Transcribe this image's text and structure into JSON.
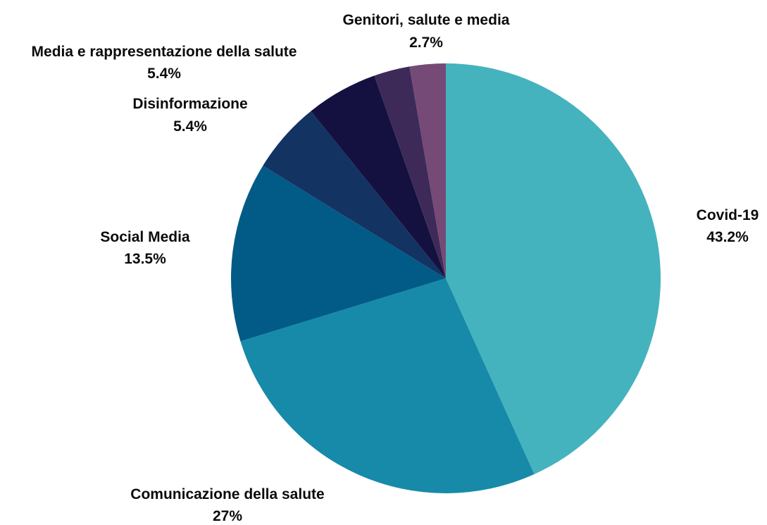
{
  "chart_data": {
    "type": "pie",
    "title": "",
    "categories": [
      "Covid-19",
      "Comunicazione della salute",
      "Social Media",
      "Disinformazione",
      "Media e rappresentazione della salute",
      "Genitori, salute e media",
      ""
    ],
    "values": [
      43.2,
      27,
      13.5,
      5.4,
      5.4,
      2.7,
      2.7
    ],
    "value_labels": [
      "43.2%",
      "27%",
      "13.5%",
      "5.4%",
      "5.4%",
      "2.7%",
      ""
    ],
    "colors": [
      "#44b3bd",
      "#178aa9",
      "#025b86",
      "#133363",
      "#141140",
      "#3d2a58",
      "#764a76"
    ],
    "start": "12 o'clock",
    "direction": "clockwise",
    "legend": "none"
  }
}
